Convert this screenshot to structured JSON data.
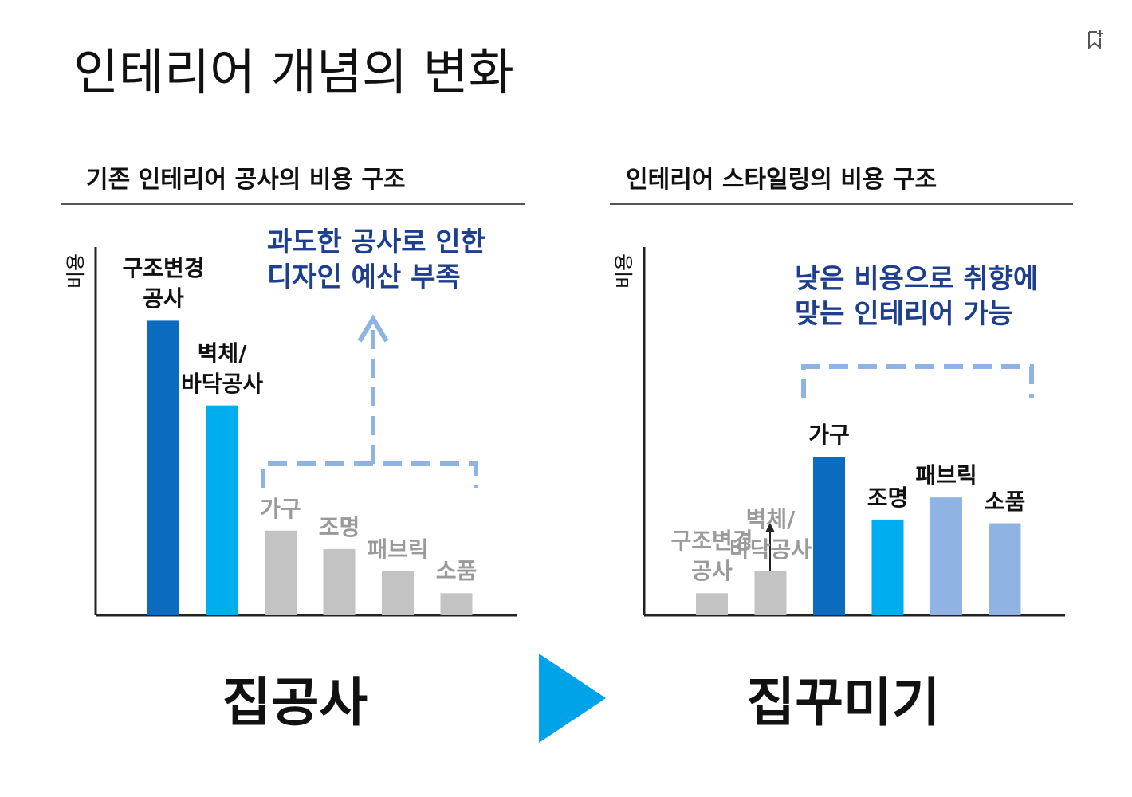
{
  "title": "인테리어 개념의 변화",
  "chart_data": [
    {
      "type": "bar",
      "title": "기존 인테리어 공사의 비용 구조",
      "y_label": "비용",
      "annotation": "과도한 공사로 인한\n디자인 예산 부족",
      "caption": "집공사",
      "categories": [
        "구조변경\n공사",
        "벽체/\n바닥공사",
        "가구",
        "조명",
        "패브릭",
        "소품"
      ],
      "values": [
        80,
        57,
        23,
        18,
        12,
        6
      ],
      "colors": [
        "#0b6cbf",
        "#00aeef",
        "#c3c3c3",
        "#c3c3c3",
        "#c3c3c3",
        "#c3c3c3"
      ],
      "label_colors": [
        "#111111",
        "#111111",
        "#9a9a9a",
        "#9a9a9a",
        "#9a9a9a",
        "#9a9a9a"
      ],
      "ylim": [
        0,
        100
      ]
    },
    {
      "type": "bar",
      "title": "인테리어 스타일링의 비용 구조",
      "y_label": "비용",
      "annotation": "낮은 비용으로 취향에\n맞는 인테리어 가능",
      "caption": "집꾸미기",
      "categories": [
        "구조변경\n공사",
        "벽체/\n바닥공사",
        "가구",
        "조명",
        "패브릭",
        "소품"
      ],
      "values": [
        6,
        12,
        43,
        26,
        32,
        25
      ],
      "colors": [
        "#c3c3c3",
        "#c3c3c3",
        "#0b6cbf",
        "#00aeef",
        "#8fb4e3",
        "#8fb4e3"
      ],
      "label_colors": [
        "#9a9a9a",
        "#9a9a9a",
        "#111111",
        "#111111",
        "#111111",
        "#111111"
      ],
      "ylim": [
        0,
        100
      ]
    }
  ]
}
